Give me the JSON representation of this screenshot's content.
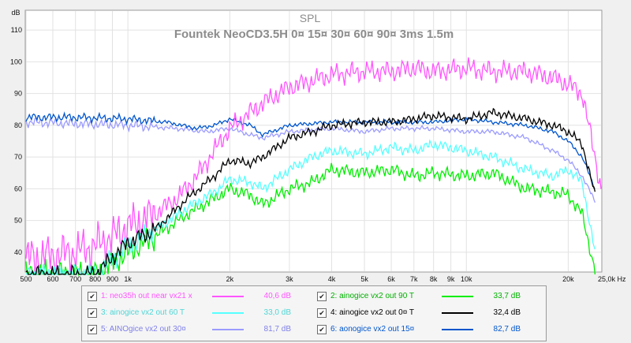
{
  "chart_data": {
    "type": "line",
    "title": "SPL",
    "subtitle": "Fountek NeoCD3.5H 0¤ 15¤ 30¤ 60¤ 90¤ 3ms 1.5m",
    "y_unit": "dB",
    "x_unit": "Hz",
    "x_scale": "log",
    "xlim": [
      500,
      25000
    ],
    "ylim": [
      34,
      116
    ],
    "grid": true,
    "x_ticks": [
      {
        "v": 500,
        "label": "500"
      },
      {
        "v": 600,
        "label": "600"
      },
      {
        "v": 700,
        "label": "700"
      },
      {
        "v": 800,
        "label": "800"
      },
      {
        "v": 900,
        "label": "900"
      },
      {
        "v": 1000,
        "label": "1k"
      },
      {
        "v": 2000,
        "label": "2k"
      },
      {
        "v": 3000,
        "label": "3k"
      },
      {
        "v": 4000,
        "label": "4k"
      },
      {
        "v": 5000,
        "label": "5k"
      },
      {
        "v": 6000,
        "label": "6k"
      },
      {
        "v": 7000,
        "label": "7k"
      },
      {
        "v": 8000,
        "label": "8k"
      },
      {
        "v": 9000,
        "label": "9k"
      },
      {
        "v": 10000,
        "label": "10k"
      },
      {
        "v": 20000,
        "label": "20k"
      },
      {
        "v": 25000,
        "label": "25,0k Hz"
      }
    ],
    "y_ticks": [
      40,
      50,
      60,
      70,
      80,
      90,
      100,
      110
    ],
    "series": [
      {
        "name": "1: neo35h out near vx21 x",
        "value": "40,6 dB",
        "color": "#ff55ff",
        "noise": 3.5,
        "points": [
          [
            500,
            38
          ],
          [
            600,
            39
          ],
          [
            700,
            40
          ],
          [
            800,
            42
          ],
          [
            900,
            45
          ],
          [
            1000,
            48
          ],
          [
            1200,
            52
          ],
          [
            1400,
            57
          ],
          [
            1600,
            64
          ],
          [
            1800,
            72
          ],
          [
            2000,
            79
          ],
          [
            2500,
            87
          ],
          [
            3000,
            92
          ],
          [
            3500,
            94
          ],
          [
            4000,
            96
          ],
          [
            5000,
            97
          ],
          [
            6000,
            97
          ],
          [
            7000,
            98
          ],
          [
            8000,
            97
          ],
          [
            10000,
            98
          ],
          [
            12000,
            97
          ],
          [
            15000,
            97
          ],
          [
            18000,
            95
          ],
          [
            20000,
            93
          ],
          [
            22000,
            90
          ],
          [
            24000,
            70
          ],
          [
            25000,
            60
          ]
        ]
      },
      {
        "name": "2: ainogice vx2 out 90 T",
        "value": "33,7 dB",
        "color": "#00ee00",
        "noise": 2.2,
        "points": [
          [
            500,
            33
          ],
          [
            800,
            33
          ],
          [
            1000,
            40
          ],
          [
            1200,
            45
          ],
          [
            1500,
            52
          ],
          [
            1800,
            57
          ],
          [
            2000,
            60
          ],
          [
            2300,
            58
          ],
          [
            2500,
            55
          ],
          [
            3000,
            60
          ],
          [
            3500,
            62
          ],
          [
            4000,
            66
          ],
          [
            5000,
            65
          ],
          [
            6000,
            66
          ],
          [
            7000,
            64
          ],
          [
            8000,
            65
          ],
          [
            10000,
            64
          ],
          [
            12000,
            65
          ],
          [
            15000,
            60
          ],
          [
            18000,
            59
          ],
          [
            20000,
            58
          ],
          [
            22000,
            52
          ],
          [
            24000,
            34
          ]
        ]
      },
      {
        "name": "3: ainogice vx2 out 60 T",
        "value": "33,0 dB",
        "color": "#55ffff",
        "noise": 1.8,
        "points": [
          [
            500,
            33
          ],
          [
            800,
            33
          ],
          [
            1000,
            42
          ],
          [
            1200,
            47
          ],
          [
            1500,
            54
          ],
          [
            1800,
            59
          ],
          [
            2000,
            63
          ],
          [
            2300,
            62
          ],
          [
            2500,
            60
          ],
          [
            3000,
            66
          ],
          [
            3500,
            70
          ],
          [
            4000,
            72
          ],
          [
            5000,
            71
          ],
          [
            6000,
            73
          ],
          [
            7000,
            72
          ],
          [
            8000,
            74
          ],
          [
            10000,
            72
          ],
          [
            12000,
            70
          ],
          [
            15000,
            66
          ],
          [
            18000,
            64
          ],
          [
            20000,
            66
          ],
          [
            22000,
            62
          ],
          [
            24000,
            40
          ]
        ]
      },
      {
        "name": "4: ainogice vx2 out 0¤ T",
        "value": "32,4 dB",
        "color": "#000000",
        "noise": 1.5,
        "points": [
          [
            500,
            33
          ],
          [
            800,
            33
          ],
          [
            1000,
            43
          ],
          [
            1200,
            47
          ],
          [
            1500,
            57
          ],
          [
            1800,
            64
          ],
          [
            2000,
            69
          ],
          [
            2300,
            68
          ],
          [
            2500,
            70
          ],
          [
            3000,
            76
          ],
          [
            3500,
            78
          ],
          [
            4000,
            80
          ],
          [
            5000,
            81
          ],
          [
            6000,
            81
          ],
          [
            7000,
            82
          ],
          [
            8000,
            83
          ],
          [
            10000,
            82
          ],
          [
            12000,
            84
          ],
          [
            15000,
            82
          ],
          [
            18000,
            80
          ],
          [
            20000,
            78
          ],
          [
            22000,
            74
          ],
          [
            24000,
            58
          ]
        ]
      },
      {
        "name": "5: AINOgice vx2 out 30¤",
        "value": "81,7 dB",
        "color": "#9b9bff",
        "noise": 0.8,
        "points": [
          [
            500,
            81
          ],
          [
            700,
            80.5
          ],
          [
            1000,
            80
          ],
          [
            1400,
            79
          ],
          [
            1700,
            78
          ],
          [
            2000,
            79
          ],
          [
            2300,
            77
          ],
          [
            2500,
            76
          ],
          [
            3000,
            78
          ],
          [
            4000,
            79
          ],
          [
            5000,
            78
          ],
          [
            6000,
            79
          ],
          [
            7000,
            79
          ],
          [
            8000,
            79
          ],
          [
            10000,
            78
          ],
          [
            12000,
            78
          ],
          [
            15000,
            76
          ],
          [
            18000,
            72
          ],
          [
            20000,
            69
          ],
          [
            22000,
            64
          ],
          [
            24000,
            56
          ]
        ]
      },
      {
        "name": "6: aonogice vx2 out 15¤",
        "value": "82,7 dB",
        "color": "#0055cc",
        "noise": 0.7,
        "points": [
          [
            500,
            82.5
          ],
          [
            700,
            82.5
          ],
          [
            1000,
            82
          ],
          [
            1300,
            81
          ],
          [
            1600,
            79
          ],
          [
            1800,
            80
          ],
          [
            2000,
            82
          ],
          [
            2300,
            80
          ],
          [
            2500,
            77
          ],
          [
            3000,
            80
          ],
          [
            4000,
            81
          ],
          [
            5000,
            81
          ],
          [
            6000,
            81
          ],
          [
            7000,
            81
          ],
          [
            8000,
            81
          ],
          [
            10000,
            82
          ],
          [
            12000,
            81
          ],
          [
            15000,
            80
          ],
          [
            18000,
            78
          ],
          [
            20000,
            75
          ],
          [
            22000,
            70
          ],
          [
            24000,
            60
          ]
        ]
      }
    ]
  },
  "legend": {
    "check": "✔",
    "items": [
      {
        "label": "1: neo35h out near vx21 x",
        "value": "40,6 dB",
        "color": "#ff55ff"
      },
      {
        "label": "2: ainogice vx2 out 90 T",
        "value": "33,7 dB",
        "color": "#00ee00"
      },
      {
        "label": "3: ainogice vx2 out 60 T",
        "value": "33,0 dB",
        "color": "#55ffff"
      },
      {
        "label": "4: ainogice vx2 out 0¤ T",
        "value": "32,4 dB",
        "color": "#000000"
      },
      {
        "label": "5: AINOgice vx2 out 30¤",
        "value": "81,7 dB",
        "color": "#9b9bff"
      },
      {
        "label": "6: aonogice vx2 out 15¤",
        "value": "82,7 dB",
        "color": "#0055cc"
      }
    ]
  }
}
